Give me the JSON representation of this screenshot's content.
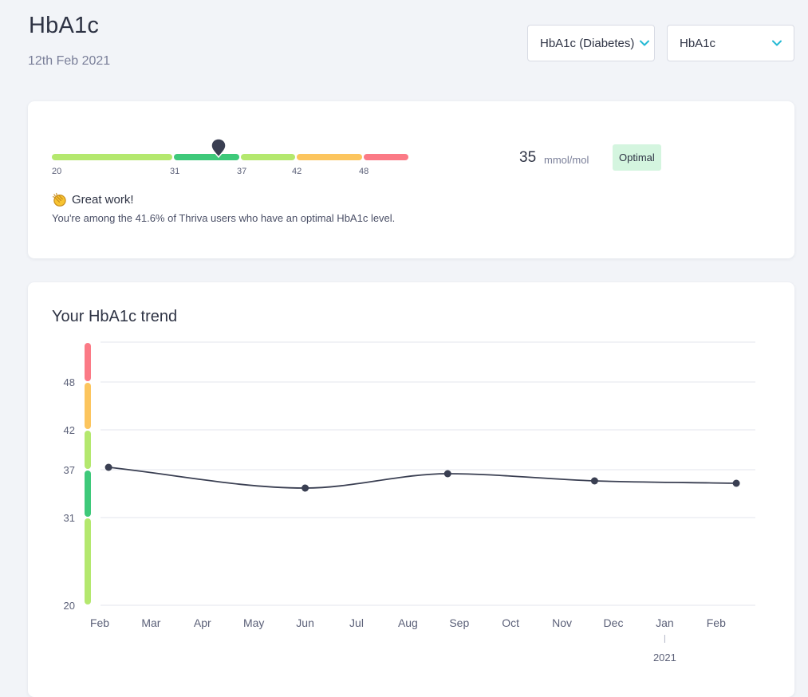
{
  "header": {
    "title": "HbA1c",
    "date": "12th Feb 2021"
  },
  "selects": {
    "marker": {
      "value": "HbA1c (Diabetes)"
    },
    "biomarker": {
      "value": "HbA1c"
    }
  },
  "result": {
    "range_bands": [
      {
        "from": 20,
        "to": 31,
        "color": "#b4e86e"
      },
      {
        "from": 31,
        "to": 37,
        "color": "#3ec97a"
      },
      {
        "from": 37,
        "to": 42,
        "color": "#b4e86e"
      },
      {
        "from": 42,
        "to": 48,
        "color": "#fcc55e"
      },
      {
        "from": 48,
        "to": 55,
        "color": "#fb7a86"
      }
    ],
    "range_ticks": [
      "20",
      "31",
      "37",
      "42",
      "48"
    ],
    "value": "35",
    "unit": "mmol/mol",
    "status": "Optimal",
    "message_title": "Great work!",
    "message_body": "You're among the 41.6% of Thriva users who have an optimal HbA1c level.",
    "message_icon": "clapping-hands-icon"
  },
  "trend": {
    "title": "Your HbA1c trend"
  },
  "chart_data": {
    "type": "line",
    "x": [
      "2020-02-06",
      "2020-06-01",
      "2020-08-25",
      "2020-11-20",
      "2021-02-12"
    ],
    "values": [
      37.3,
      34.7,
      36.5,
      35.6,
      35.3
    ],
    "x_ticks": [
      "Feb",
      "Mar",
      "Apr",
      "May",
      "Jun",
      "Jul",
      "Aug",
      "Sep",
      "Oct",
      "Nov",
      "Dec",
      "Jan",
      "Feb"
    ],
    "year_label": "2021",
    "y_ticks": [
      20,
      31,
      37,
      42,
      48
    ],
    "ylim": [
      20,
      53
    ],
    "grid": true,
    "line_color": "#3a3f52",
    "bands": [
      {
        "from": 20,
        "to": 31,
        "color": "#b4e86e"
      },
      {
        "from": 31,
        "to": 37,
        "color": "#3ec97a"
      },
      {
        "from": 37,
        "to": 42,
        "color": "#b4e86e"
      },
      {
        "from": 42,
        "to": 48,
        "color": "#fcc55e"
      },
      {
        "from": 48,
        "to": 53,
        "color": "#fb7a86"
      }
    ]
  }
}
